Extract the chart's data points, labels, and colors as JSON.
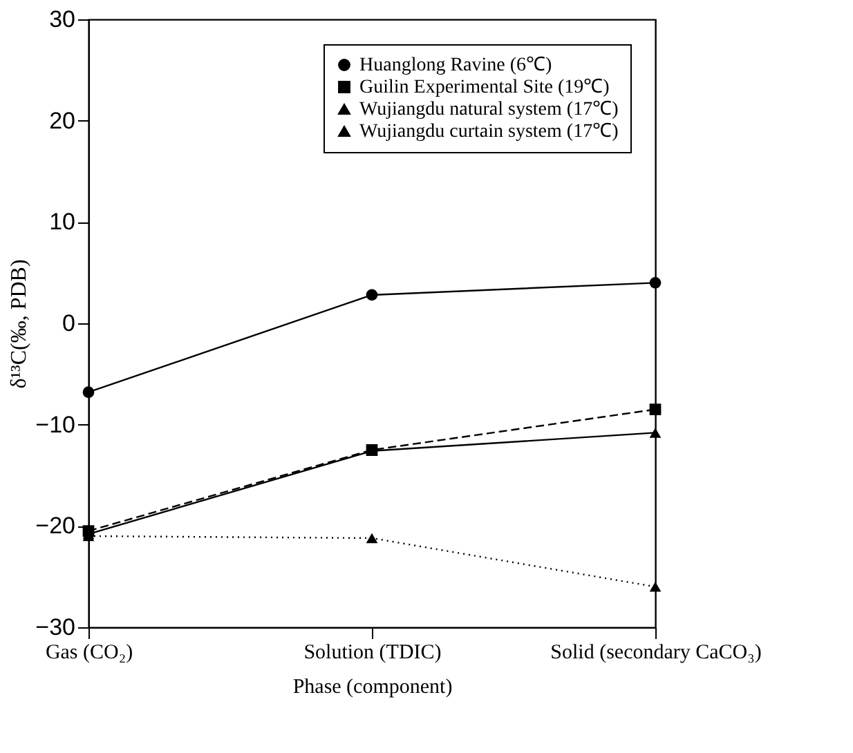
{
  "chart_data": {
    "type": "line",
    "xlabel": "Phase (component)",
    "ylabel": "δ¹³C(‰, PDB)",
    "categories": [
      "Gas (CO₂)",
      "Solution (TDIC)",
      "Solid (secondary CaCO₃)"
    ],
    "ylim": [
      -30,
      30
    ],
    "yticks": [
      -30,
      -20,
      -10,
      0,
      10,
      20,
      30
    ],
    "grid": false,
    "legend": "top right",
    "series": [
      {
        "name": "Huanglong Ravine (6℃)",
        "color": "#000000",
        "marker": "circle",
        "line_style": "solid",
        "values": [
          -6.8,
          2.8,
          4.0
        ]
      },
      {
        "name": "Guilin Experimental Site (19℃)",
        "color": "#000000",
        "marker": "square",
        "line_style": "dashed",
        "values": [
          -20.5,
          -12.5,
          -8.5
        ]
      },
      {
        "name": "Wujiangdu natural system (17℃)",
        "color": "#000000",
        "marker": "triangle",
        "line_style": "solid",
        "values": [
          -20.8,
          -12.6,
          -10.8
        ]
      },
      {
        "name": "Wujiangdu curtain system (17℃)",
        "color": "#000000",
        "marker": "triangle",
        "line_style": "dotted",
        "values": [
          -21.0,
          -21.2,
          -26.0
        ]
      }
    ]
  }
}
